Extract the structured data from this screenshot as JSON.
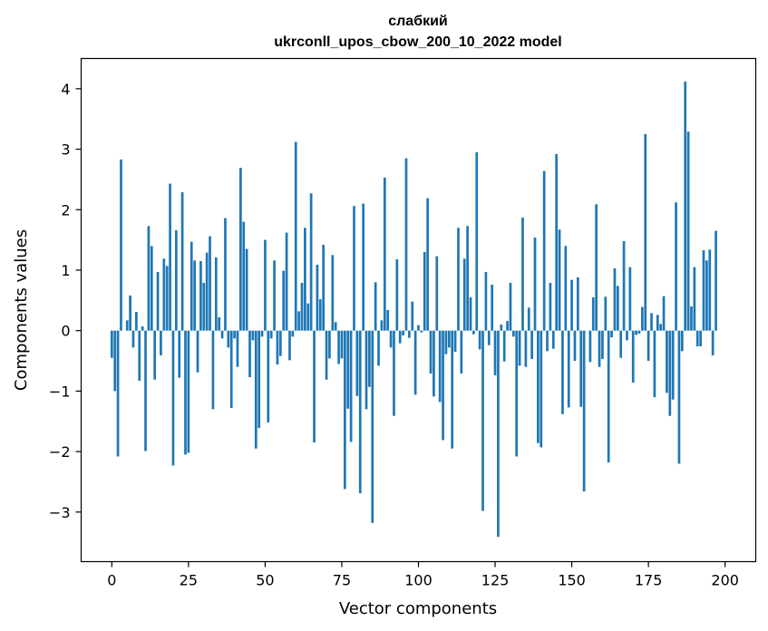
{
  "chart_data": {
    "type": "bar",
    "title": "слабкий",
    "subtitle": "ukrconll_upos_cbow_200_10_2022 model",
    "xlabel": "Vector components",
    "ylabel": "Components values",
    "xlim": [
      -10,
      210
    ],
    "ylim": [
      -3.82,
      4.5
    ],
    "xticks": [
      0,
      25,
      50,
      75,
      100,
      125,
      150,
      175,
      200
    ],
    "yticks": [
      -3,
      -2,
      -1,
      0,
      1,
      2,
      3,
      4
    ],
    "ytick_labels": [
      "−3",
      "−2",
      "−1",
      "0",
      "1",
      "2",
      "3",
      "4"
    ],
    "grid": false,
    "legend": "none",
    "bar_color": "#1f77b4",
    "values": [
      -0.45,
      -1.0,
      -2.08,
      2.83,
      0.0,
      0.17,
      0.58,
      -0.28,
      0.31,
      -0.83,
      0.07,
      -1.99,
      1.73,
      1.4,
      -0.81,
      0.97,
      -0.41,
      1.19,
      1.07,
      2.43,
      -2.23,
      1.66,
      -0.78,
      2.29,
      -2.05,
      -2.02,
      1.47,
      1.16,
      -0.69,
      1.15,
      0.79,
      1.29,
      1.56,
      -1.3,
      1.21,
      0.22,
      -0.13,
      1.86,
      -0.28,
      -1.28,
      -0.13,
      -0.6,
      2.69,
      1.8,
      1.35,
      -0.77,
      -0.16,
      -1.95,
      -1.61,
      -0.1,
      1.5,
      -1.52,
      -0.13,
      1.16,
      -0.56,
      -0.42,
      0.99,
      1.62,
      -0.49,
      -0.1,
      3.12,
      0.32,
      0.79,
      1.7,
      0.45,
      2.27,
      -1.85,
      1.09,
      0.52,
      1.42,
      -0.81,
      -0.46,
      1.25,
      0.14,
      -0.55,
      -0.46,
      -2.62,
      -1.29,
      -1.84,
      2.06,
      -1.08,
      -2.69,
      2.1,
      -1.3,
      -0.93,
      -3.18,
      0.8,
      -0.58,
      0.17,
      2.53,
      0.34,
      -0.28,
      -1.41,
      1.18,
      -0.21,
      -0.08,
      2.85,
      -0.12,
      0.48,
      -1.06,
      0.09,
      -0.03,
      1.3,
      2.19,
      -0.71,
      -1.09,
      1.23,
      -1.18,
      -1.81,
      -0.39,
      -0.28,
      -1.95,
      -0.35,
      1.7,
      -0.71,
      1.19,
      1.73,
      0.55,
      -0.06,
      2.95,
      -0.31,
      -2.98,
      0.97,
      -0.24,
      0.76,
      -0.74,
      -3.41,
      0.1,
      -0.51,
      0.16,
      0.79,
      -0.1,
      -2.08,
      -0.58,
      1.87,
      -0.6,
      0.38,
      -0.47,
      1.54,
      -1.86,
      -1.93,
      2.64,
      -0.34,
      0.79,
      -0.3,
      2.92,
      1.67,
      -1.38,
      1.4,
      -1.27,
      0.84,
      -0.5,
      0.88,
      -1.26,
      -2.66,
      0.0,
      -0.52,
      0.55,
      2.09,
      -0.6,
      -0.47,
      0.56,
      -2.18,
      -0.11,
      1.03,
      0.74,
      -0.45,
      1.48,
      -0.16,
      1.05,
      -0.86,
      -0.07,
      -0.05,
      0.39,
      3.25,
      -0.5,
      0.29,
      -1.1,
      0.26,
      0.11,
      0.57,
      -1.03,
      -1.41,
      -1.14,
      2.12,
      -2.2,
      -0.34,
      4.12,
      3.29,
      0.4,
      1.05,
      -0.26,
      -0.26,
      1.33,
      1.16,
      1.34,
      -0.41,
      1.65
    ]
  }
}
